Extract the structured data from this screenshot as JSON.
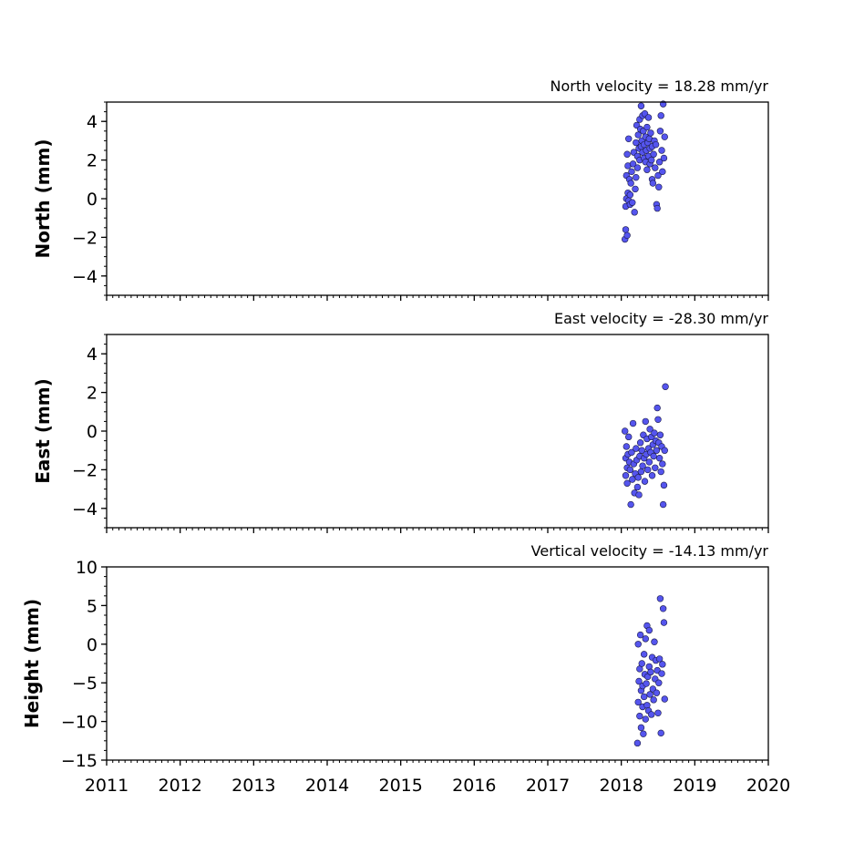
{
  "chart_data": [
    {
      "type": "scatter",
      "title": "North velocity = 18.28 mm/yr",
      "ylabel": "North (mm)",
      "xlabel": "",
      "xlim": [
        2011,
        2020
      ],
      "ylim": [
        -5,
        5
      ],
      "yticks": [
        4,
        2,
        0,
        -2,
        -4
      ],
      "ytick_labels": [
        "4",
        "2",
        "0",
        "−2",
        "−4"
      ],
      "grid": false,
      "marker_color": "#5555ee",
      "x": [
        2018.05,
        2018.06,
        2018.06,
        2018.07,
        2018.07,
        2018.08,
        2018.08,
        2018.09,
        2018.09,
        2018.1,
        2018.1,
        2018.11,
        2018.12,
        2018.12,
        2018.13,
        2018.14,
        2018.15,
        2018.16,
        2018.17,
        2018.18,
        2018.19,
        2018.2,
        2018.2,
        2018.21,
        2018.22,
        2018.22,
        2018.23,
        2018.24,
        2018.25,
        2018.25,
        2018.26,
        2018.27,
        2018.27,
        2018.28,
        2018.29,
        2018.29,
        2018.3,
        2018.31,
        2018.31,
        2018.32,
        2018.33,
        2018.33,
        2018.34,
        2018.35,
        2018.35,
        2018.36,
        2018.37,
        2018.37,
        2018.38,
        2018.39,
        2018.39,
        2018.4,
        2018.41,
        2018.42,
        2018.42,
        2018.43,
        2018.44,
        2018.45,
        2018.46,
        2018.47,
        2018.48,
        2018.49,
        2018.5,
        2018.51,
        2018.52,
        2018.53,
        2018.54,
        2018.55,
        2018.56,
        2018.57,
        2018.58,
        2018.59
      ],
      "y": [
        -2.1,
        -1.6,
        -0.4,
        0.0,
        1.2,
        2.3,
        -1.9,
        1.7,
        0.3,
        3.1,
        -0.1,
        1.0,
        0.2,
        -0.3,
        0.8,
        1.4,
        -0.2,
        1.8,
        2.4,
        -0.7,
        0.5,
        2.9,
        1.1,
        3.8,
        2.2,
        1.6,
        3.3,
        2.6,
        4.1,
        2.0,
        3.6,
        2.7,
        4.8,
        3.0,
        2.4,
        4.3,
        3.5,
        2.1,
        2.8,
        4.4,
        3.2,
        1.9,
        2.5,
        3.7,
        1.5,
        2.9,
        4.2,
        2.2,
        3.1,
        1.8,
        2.6,
        3.4,
        2.0,
        1.0,
        2.7,
        0.8,
        2.3,
        3.0,
        1.6,
        2.8,
        -0.3,
        -0.5,
        1.2,
        0.6,
        1.9,
        3.5,
        4.3,
        2.5,
        1.4,
        4.9,
        2.1,
        3.2
      ]
    },
    {
      "type": "scatter",
      "title": "East velocity = -28.30 mm/yr",
      "ylabel": "East (mm)",
      "xlabel": "",
      "xlim": [
        2011,
        2020
      ],
      "ylim": [
        -5,
        5
      ],
      "yticks": [
        4,
        2,
        0,
        -2,
        -4
      ],
      "ytick_labels": [
        "4",
        "2",
        "0",
        "−2",
        "−4"
      ],
      "grid": false,
      "marker_color": "#5555ee",
      "x": [
        2018.05,
        2018.06,
        2018.06,
        2018.07,
        2018.08,
        2018.08,
        2018.09,
        2018.1,
        2018.11,
        2018.12,
        2018.13,
        2018.14,
        2018.15,
        2018.16,
        2018.17,
        2018.18,
        2018.19,
        2018.2,
        2018.21,
        2018.22,
        2018.23,
        2018.24,
        2018.25,
        2018.26,
        2018.27,
        2018.28,
        2018.29,
        2018.3,
        2018.31,
        2018.32,
        2018.33,
        2018.34,
        2018.35,
        2018.36,
        2018.37,
        2018.38,
        2018.39,
        2018.4,
        2018.41,
        2018.42,
        2018.43,
        2018.44,
        2018.45,
        2018.46,
        2018.47,
        2018.48,
        2018.49,
        2018.5,
        2018.51,
        2018.52,
        2018.53,
        2018.54,
        2018.55,
        2018.56,
        2018.57,
        2018.58,
        2018.59,
        2018.6
      ],
      "y": [
        0.0,
        -1.4,
        -2.3,
        -0.8,
        -1.9,
        -2.7,
        -1.2,
        -0.3,
        -1.6,
        -2.0,
        -3.8,
        -1.1,
        -2.5,
        0.4,
        -1.7,
        -3.2,
        -2.2,
        -0.9,
        -1.5,
        -2.9,
        -2.4,
        -3.3,
        -1.3,
        -0.6,
        -2.1,
        -1.0,
        -1.8,
        -0.2,
        -1.4,
        -2.6,
        0.5,
        -1.2,
        -0.4,
        -2.0,
        -0.9,
        -1.6,
        0.1,
        -1.1,
        -0.3,
        -2.3,
        -0.7,
        -1.3,
        -0.1,
        -1.9,
        -0.5,
        -1.0,
        1.2,
        0.6,
        -0.6,
        -1.4,
        -0.2,
        -2.1,
        -0.8,
        -1.7,
        -3.8,
        -2.8,
        -1.0,
        2.3
      ]
    },
    {
      "type": "scatter",
      "title": "Vertical velocity = -14.13 mm/yr",
      "ylabel": "Height (mm)",
      "xlabel": "",
      "xlim": [
        2011,
        2020
      ],
      "ylim": [
        -15,
        10
      ],
      "yticks": [
        10,
        5,
        0,
        -5,
        -10,
        -15
      ],
      "ytick_labels": [
        "10",
        "5",
        "0",
        "−5",
        "−10",
        "−15"
      ],
      "grid": false,
      "marker_color": "#5555ee",
      "x": [
        2018.22,
        2018.23,
        2018.23,
        2018.24,
        2018.25,
        2018.25,
        2018.26,
        2018.27,
        2018.27,
        2018.28,
        2018.29,
        2018.29,
        2018.3,
        2018.31,
        2018.31,
        2018.32,
        2018.33,
        2018.33,
        2018.34,
        2018.35,
        2018.35,
        2018.36,
        2018.37,
        2018.38,
        2018.38,
        2018.39,
        2018.4,
        2018.41,
        2018.42,
        2018.43,
        2018.44,
        2018.45,
        2018.46,
        2018.47,
        2018.48,
        2018.49,
        2018.5,
        2018.51,
        2018.52,
        2018.53,
        2018.54,
        2018.55,
        2018.56,
        2018.57,
        2018.58,
        2018.59
      ],
      "y": [
        -12.8,
        -7.5,
        0.0,
        -4.8,
        -9.3,
        -3.2,
        1.2,
        -6.0,
        -10.8,
        -2.5,
        -8.1,
        -5.4,
        -11.6,
        -1.3,
        -6.8,
        -3.9,
        -9.7,
        0.7,
        -5.1,
        -7.9,
        2.4,
        -4.2,
        -8.6,
        -2.9,
        1.8,
        -6.5,
        -3.6,
        -9.1,
        -1.7,
        -5.8,
        -7.2,
        0.3,
        -4.5,
        -2.1,
        -6.3,
        -3.4,
        -8.9,
        -5.0,
        -1.9,
        5.9,
        -11.5,
        -3.8,
        -2.6,
        4.6,
        2.8,
        -7.1
      ]
    }
  ],
  "x_axis": {
    "ticks": [
      2011,
      2012,
      2013,
      2014,
      2015,
      2016,
      2017,
      2018,
      2019,
      2020
    ],
    "labels": [
      "2011",
      "2012",
      "2013",
      "2014",
      "2015",
      "2016",
      "2017",
      "2018",
      "2019",
      "2020"
    ]
  }
}
